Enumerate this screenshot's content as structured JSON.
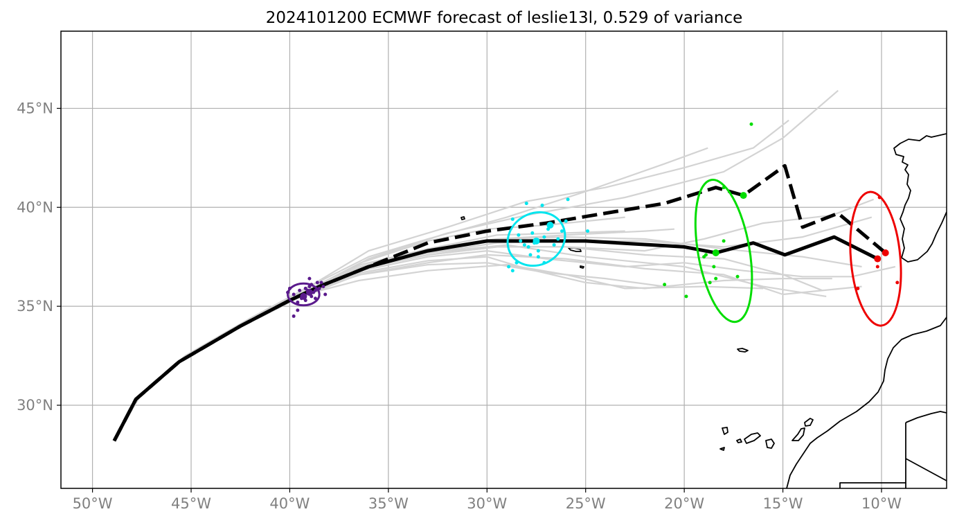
{
  "title": "2024101200 ECMWF forecast of leslie13l, 0.529 of variance",
  "x_ticks": [
    {
      "lon": -50,
      "label": "50°W"
    },
    {
      "lon": -45,
      "label": "45°W"
    },
    {
      "lon": -40,
      "label": "40°W"
    },
    {
      "lon": -35,
      "label": "35°W"
    },
    {
      "lon": -30,
      "label": "30°W"
    },
    {
      "lon": -25,
      "label": "25°W"
    },
    {
      "lon": -20,
      "label": "20°W"
    },
    {
      "lon": -15,
      "label": "15°W"
    },
    {
      "lon": -10,
      "label": "10°W"
    }
  ],
  "y_ticks": [
    {
      "lat": 30,
      "label": "30°N"
    },
    {
      "lat": 35,
      "label": "35°N"
    },
    {
      "lat": 40,
      "label": "40°N"
    },
    {
      "lat": 45,
      "label": "45°N"
    }
  ],
  "colors": {
    "ensemble": "#d3d3d3",
    "mean_track": "#000000",
    "purple": "#5a1a8c",
    "cyan": "#00e5ee",
    "green": "#00dd00",
    "red": "#ee0000",
    "grid": "#b0b0b0",
    "tick_label": "#808080"
  },
  "chart_data": {
    "type": "map",
    "xlim": [
      -51.6,
      -6.7
    ],
    "ylim": [
      25.8,
      48.9
    ],
    "grid": true,
    "solid_track": [
      [
        -48.9,
        28.2
      ],
      [
        -47.8,
        30.3
      ],
      [
        -45.6,
        32.2
      ],
      [
        -42.5,
        34.0
      ],
      [
        -40.0,
        35.3
      ],
      [
        -38.5,
        36.0
      ],
      [
        -36.0,
        37.0
      ],
      [
        -33.0,
        37.8
      ],
      [
        -30.0,
        38.3
      ],
      [
        -25.0,
        38.3
      ],
      [
        -20.0,
        38.0
      ],
      [
        -18.4,
        37.7
      ],
      [
        -16.5,
        38.2
      ],
      [
        -14.9,
        37.6
      ],
      [
        -12.4,
        38.5
      ],
      [
        -10.2,
        37.4
      ]
    ],
    "dashed_track": [
      [
        -48.9,
        28.2
      ],
      [
        -47.8,
        30.3
      ],
      [
        -45.6,
        32.2
      ],
      [
        -42.5,
        34.0
      ],
      [
        -40.0,
        35.3
      ],
      [
        -38.5,
        36.0
      ],
      [
        -36.0,
        37.0
      ],
      [
        -33.0,
        38.2
      ],
      [
        -30.0,
        38.8
      ],
      [
        -27.0,
        39.2
      ],
      [
        -21.0,
        40.2
      ],
      [
        -18.4,
        41.0
      ],
      [
        -17.0,
        40.6
      ],
      [
        -14.9,
        42.1
      ],
      [
        -14.0,
        39.0
      ],
      [
        -12.2,
        39.7
      ],
      [
        -9.8,
        37.7
      ]
    ],
    "ensemble_members": [
      [
        [
          -48.9,
          28.3
        ],
        [
          -47.5,
          30.6
        ],
        [
          -45.3,
          32.5
        ],
        [
          -42.0,
          34.4
        ],
        [
          -39.0,
          36.0
        ],
        [
          -36.0,
          37.8
        ],
        [
          -32.0,
          39.0
        ],
        [
          -28.0,
          40.3
        ],
        [
          -24.0,
          41.0
        ],
        [
          -20.0,
          42.0
        ],
        [
          -16.5,
          43.0
        ],
        [
          -14.7,
          44.4
        ]
      ],
      [
        [
          -48.9,
          28.3
        ],
        [
          -47.7,
          30.4
        ],
        [
          -45.5,
          32.3
        ],
        [
          -42.2,
          34.2
        ],
        [
          -39.0,
          35.8
        ],
        [
          -36.0,
          37.4
        ],
        [
          -32.0,
          38.7
        ],
        [
          -28.0,
          39.6
        ],
        [
          -23.0,
          40.5
        ],
        [
          -18.0,
          41.8
        ],
        [
          -15.0,
          43.5
        ],
        [
          -12.2,
          45.9
        ]
      ],
      [
        [
          -48.9,
          28.3
        ],
        [
          -47.6,
          30.5
        ],
        [
          -45.4,
          32.4
        ],
        [
          -42.2,
          34.2
        ],
        [
          -39.2,
          35.9
        ],
        [
          -36.0,
          37.5
        ],
        [
          -33.0,
          38.4
        ],
        [
          -29.0,
          39.5
        ],
        [
          -25.0,
          40.8
        ],
        [
          -21.0,
          42.2
        ],
        [
          -18.8,
          43.0
        ]
      ],
      [
        [
          -48.9,
          28.2
        ],
        [
          -47.8,
          30.3
        ],
        [
          -45.6,
          32.2
        ],
        [
          -42.4,
          34.1
        ],
        [
          -39.4,
          35.7
        ],
        [
          -36.2,
          37.0
        ],
        [
          -33.0,
          37.7
        ],
        [
          -29.0,
          38.1
        ],
        [
          -25.0,
          37.5
        ],
        [
          -20.0,
          37.0
        ],
        [
          -16.0,
          36.0
        ],
        [
          -12.8,
          35.5
        ]
      ],
      [
        [
          -48.9,
          28.2
        ],
        [
          -47.8,
          30.3
        ],
        [
          -45.6,
          32.2
        ],
        [
          -42.6,
          33.9
        ],
        [
          -39.6,
          35.4
        ],
        [
          -36.5,
          36.6
        ],
        [
          -33.0,
          37.2
        ],
        [
          -30.0,
          37.6
        ],
        [
          -26.0,
          37.4
        ],
        [
          -22.0,
          36.9
        ],
        [
          -18.0,
          36.6
        ],
        [
          -15.0,
          35.6
        ],
        [
          -11.0,
          36.0
        ]
      ],
      [
        [
          -48.9,
          28.2
        ],
        [
          -47.8,
          30.3
        ],
        [
          -45.6,
          32.2
        ],
        [
          -42.5,
          34.0
        ],
        [
          -39.6,
          35.5
        ],
        [
          -36.5,
          36.3
        ],
        [
          -33.0,
          36.8
        ],
        [
          -29.0,
          37.1
        ],
        [
          -26.0,
          36.6
        ],
        [
          -23.0,
          35.9
        ],
        [
          -19.0,
          36.0
        ],
        [
          -16.0,
          35.9
        ]
      ],
      [
        [
          -48.9,
          28.2
        ],
        [
          -47.8,
          30.3
        ],
        [
          -45.6,
          32.2
        ],
        [
          -42.5,
          34.0
        ],
        [
          -39.5,
          35.6
        ],
        [
          -36.4,
          36.9
        ],
        [
          -33.0,
          37.6
        ],
        [
          -29.5,
          38.0
        ],
        [
          -26.0,
          38.0
        ],
        [
          -22.0,
          37.8
        ],
        [
          -19.0,
          38.4
        ],
        [
          -16.0,
          39.2
        ],
        [
          -12.5,
          39.6
        ],
        [
          -10.4,
          40.4
        ]
      ],
      [
        [
          -48.9,
          28.2
        ],
        [
          -47.8,
          30.3
        ],
        [
          -45.6,
          32.2
        ],
        [
          -42.5,
          34.0
        ],
        [
          -39.5,
          35.6
        ],
        [
          -36.4,
          37.1
        ],
        [
          -33.0,
          37.9
        ],
        [
          -29.5,
          38.6
        ],
        [
          -26.0,
          38.7
        ],
        [
          -23.0,
          38.8
        ]
      ],
      [
        [
          -48.9,
          28.2
        ],
        [
          -47.8,
          30.3
        ],
        [
          -45.6,
          32.2
        ],
        [
          -42.5,
          34.0
        ],
        [
          -39.5,
          35.6
        ],
        [
          -36.4,
          37.0
        ],
        [
          -33.0,
          37.9
        ],
        [
          -29.5,
          38.4
        ],
        [
          -26.0,
          38.5
        ],
        [
          -22.0,
          38.4
        ],
        [
          -18.0,
          37.9
        ],
        [
          -14.0,
          37.5
        ],
        [
          -11.0,
          37.0
        ]
      ],
      [
        [
          -48.9,
          28.2
        ],
        [
          -47.8,
          30.3
        ],
        [
          -45.6,
          32.2
        ],
        [
          -42.5,
          34.0
        ],
        [
          -39.5,
          35.6
        ],
        [
          -36.4,
          36.8
        ],
        [
          -33.0,
          37.5
        ],
        [
          -30.0,
          37.8
        ],
        [
          -27.0,
          37.4
        ],
        [
          -23.0,
          37.0
        ],
        [
          -20.0,
          37.2
        ],
        [
          -17.0,
          36.8
        ],
        [
          -14.0,
          36.5
        ],
        [
          -11.5,
          36.5
        ],
        [
          -9.3,
          37.0
        ]
      ],
      [
        [
          -48.9,
          28.2
        ],
        [
          -47.8,
          30.3
        ],
        [
          -45.6,
          32.2
        ],
        [
          -42.5,
          34.0
        ],
        [
          -39.5,
          35.6
        ],
        [
          -36.4,
          36.7
        ],
        [
          -33.0,
          37.3
        ],
        [
          -30.0,
          37.5
        ],
        [
          -28.0,
          36.9
        ],
        [
          -25.0,
          36.2
        ],
        [
          -22.0,
          35.9
        ],
        [
          -18.0,
          36.3
        ],
        [
          -15.0,
          36.4
        ],
        [
          -12.5,
          36.4
        ]
      ],
      [
        [
          -48.9,
          28.2
        ],
        [
          -47.8,
          30.3
        ],
        [
          -45.6,
          32.2
        ],
        [
          -42.5,
          34.0
        ],
        [
          -39.5,
          35.6
        ],
        [
          -36.4,
          37.2
        ],
        [
          -33.0,
          38.3
        ],
        [
          -30.0,
          38.9
        ],
        [
          -27.0,
          39.1
        ],
        [
          -23.0,
          39.5
        ]
      ],
      [
        [
          -48.9,
          28.2
        ],
        [
          -47.8,
          30.3
        ],
        [
          -45.6,
          32.2
        ],
        [
          -42.5,
          34.0
        ],
        [
          -39.5,
          35.6
        ],
        [
          -36.4,
          37.0
        ],
        [
          -33.0,
          37.9
        ],
        [
          -29.5,
          38.4
        ],
        [
          -26.0,
          38.6
        ],
        [
          -22.0,
          38.8
        ],
        [
          -20.5,
          38.9
        ]
      ],
      [
        [
          -48.9,
          28.2
        ],
        [
          -47.8,
          30.3
        ],
        [
          -45.6,
          32.2
        ],
        [
          -42.5,
          34.0
        ],
        [
          -39.5,
          35.6
        ],
        [
          -36.4,
          36.9
        ],
        [
          -33.0,
          37.6
        ],
        [
          -29.5,
          38.0
        ],
        [
          -26.0,
          38.0
        ],
        [
          -22.0,
          37.6
        ],
        [
          -18.0,
          37.4
        ],
        [
          -15.0,
          36.6
        ],
        [
          -13.0,
          35.8
        ]
      ],
      [
        [
          -48.9,
          28.2
        ],
        [
          -47.8,
          30.3
        ],
        [
          -45.6,
          32.2
        ],
        [
          -42.5,
          34.0
        ],
        [
          -39.5,
          35.6
        ],
        [
          -36.4,
          36.9
        ],
        [
          -33.0,
          37.7
        ],
        [
          -29.5,
          38.2
        ],
        [
          -26.0,
          38.3
        ],
        [
          -22.0,
          38.3
        ],
        [
          -18.0,
          38.0
        ],
        [
          -14.0,
          38.5
        ],
        [
          -10.5,
          39.5
        ]
      ],
      [
        [
          -48.9,
          28.2
        ],
        [
          -47.8,
          30.3
        ],
        [
          -45.6,
          32.2
        ],
        [
          -42.5,
          34.0
        ],
        [
          -39.5,
          35.6
        ],
        [
          -36.4,
          36.6
        ],
        [
          -33.0,
          37.1
        ],
        [
          -30.0,
          37.2
        ],
        [
          -27.0,
          36.7
        ],
        [
          -24.0,
          36.4
        ],
        [
          -21.0,
          36.0
        ]
      ]
    ],
    "markers": {
      "purple": {
        "ellipse": {
          "cx": -39.3,
          "cy": 35.6,
          "rx_deg": 0.8,
          "ry_deg": 0.55,
          "rotation": 0
        },
        "mean_dots": [
          [
            -39.0,
            35.7
          ],
          [
            -39.3,
            35.5
          ]
        ],
        "member_dots": [
          [
            -40.0,
            35.9
          ],
          [
            -39.8,
            35.6
          ],
          [
            -39.6,
            35.2
          ],
          [
            -39.4,
            35.4
          ],
          [
            -39.2,
            35.9
          ],
          [
            -38.9,
            36.1
          ],
          [
            -38.7,
            35.8
          ],
          [
            -38.5,
            35.9
          ],
          [
            -38.3,
            36.0
          ],
          [
            -38.7,
            35.4
          ],
          [
            -39.0,
            36.0
          ],
          [
            -39.5,
            35.8
          ],
          [
            -39.2,
            35.3
          ],
          [
            -38.9,
            35.5
          ],
          [
            -38.6,
            36.2
          ],
          [
            -39.0,
            36.4
          ],
          [
            -39.8,
            34.5
          ],
          [
            -39.6,
            34.8
          ],
          [
            -40.1,
            35.7
          ],
          [
            -38.2,
            35.6
          ],
          [
            -38.4,
            36.2
          ],
          [
            -39.1,
            35.8
          ],
          [
            -38.8,
            35.7
          ]
        ]
      },
      "cyan": {
        "ellipse": {
          "cx": -27.5,
          "cy": 38.4,
          "rx_deg": 1.5,
          "ry_deg": 1.3,
          "rotation": -30
        },
        "mean_dots": [
          [
            -27.5,
            38.3
          ],
          [
            -26.8,
            39.1
          ]
        ],
        "member_dots": [
          [
            -28.7,
            39.4
          ],
          [
            -28.4,
            38.6
          ],
          [
            -28.1,
            38.1
          ],
          [
            -27.9,
            38.0
          ],
          [
            -27.6,
            38.2
          ],
          [
            -27.4,
            37.8
          ],
          [
            -27.1,
            38.5
          ],
          [
            -26.6,
            38.1
          ],
          [
            -26.2,
            38.8
          ],
          [
            -26.0,
            39.3
          ],
          [
            -27.2,
            40.1
          ],
          [
            -28.0,
            40.2
          ],
          [
            -25.9,
            40.4
          ],
          [
            -28.5,
            37.2
          ],
          [
            -28.9,
            37.0
          ],
          [
            -28.7,
            36.8
          ],
          [
            -27.8,
            37.6
          ],
          [
            -27.4,
            37.5
          ],
          [
            -27.1,
            37.2
          ],
          [
            -24.9,
            38.8
          ],
          [
            -26.4,
            38.4
          ],
          [
            -28.3,
            38.3
          ],
          [
            -27.7,
            38.7
          ],
          [
            -26.9,
            38.9
          ]
        ]
      },
      "green": {
        "ellipse": {
          "cx": -18.0,
          "cy": 37.8,
          "rx_deg": 3.65,
          "ry_deg": 1.3,
          "rotation": -100
        },
        "mean_dots": [
          [
            -18.4,
            37.7
          ],
          [
            -17.0,
            40.6
          ]
        ],
        "member_dots": [
          [
            -16.6,
            44.2
          ],
          [
            -18.9,
            37.6
          ],
          [
            -19.0,
            37.5
          ],
          [
            -18.5,
            37.0
          ],
          [
            -18.0,
            38.3
          ],
          [
            -17.3,
            36.5
          ],
          [
            -18.7,
            36.2
          ],
          [
            -19.9,
            35.5
          ],
          [
            -21.0,
            36.1
          ],
          [
            -18.4,
            36.4
          ],
          [
            -18.0,
            41.0
          ]
        ]
      },
      "red": {
        "ellipse": {
          "cx": -10.3,
          "cy": 37.4,
          "rx_deg": 3.4,
          "ry_deg": 1.25,
          "rotation": -95
        },
        "mean_dots": [
          [
            -10.2,
            37.4
          ],
          [
            -9.8,
            37.7
          ]
        ],
        "member_dots": [
          [
            -10.1,
            40.5
          ],
          [
            -10.2,
            37.0
          ],
          [
            -11.2,
            35.9
          ],
          [
            -9.2,
            36.2
          ]
        ]
      }
    }
  }
}
